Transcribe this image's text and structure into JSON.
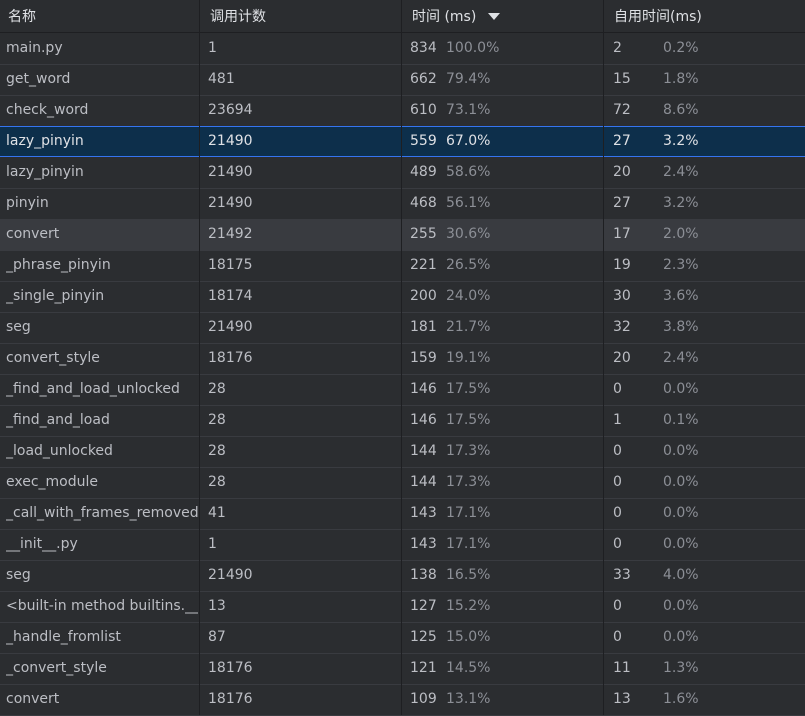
{
  "headers": {
    "name": "名称",
    "calls": "调用计数",
    "time": "时间 (ms)",
    "own_time": "自用时间(ms)"
  },
  "sort": {
    "column": "time",
    "direction": "descending",
    "icon": "sort-descending-icon"
  },
  "rows": [
    {
      "name": "main.py",
      "calls": "1",
      "time": "834",
      "time_pct": "100.0%",
      "own": "2",
      "own_pct": "0.2%"
    },
    {
      "name": "get_word",
      "calls": "481",
      "time": "662",
      "time_pct": "79.4%",
      "own": "15",
      "own_pct": "1.8%"
    },
    {
      "name": "check_word",
      "calls": "23694",
      "time": "610",
      "time_pct": "73.1%",
      "own": "72",
      "own_pct": "8.6%"
    },
    {
      "name": "lazy_pinyin",
      "calls": "21490",
      "time": "559",
      "time_pct": "67.0%",
      "own": "27",
      "own_pct": "3.2%"
    },
    {
      "name": "lazy_pinyin",
      "calls": "21490",
      "time": "489",
      "time_pct": "58.6%",
      "own": "20",
      "own_pct": "2.4%"
    },
    {
      "name": "pinyin",
      "calls": "21490",
      "time": "468",
      "time_pct": "56.1%",
      "own": "27",
      "own_pct": "3.2%"
    },
    {
      "name": "convert",
      "calls": "21492",
      "time": "255",
      "time_pct": "30.6%",
      "own": "17",
      "own_pct": "2.0%"
    },
    {
      "name": "_phrase_pinyin",
      "calls": "18175",
      "time": "221",
      "time_pct": "26.5%",
      "own": "19",
      "own_pct": "2.3%"
    },
    {
      "name": "_single_pinyin",
      "calls": "18174",
      "time": "200",
      "time_pct": "24.0%",
      "own": "30",
      "own_pct": "3.6%"
    },
    {
      "name": "seg",
      "calls": "21490",
      "time": "181",
      "time_pct": "21.7%",
      "own": "32",
      "own_pct": "3.8%"
    },
    {
      "name": "convert_style",
      "calls": "18176",
      "time": "159",
      "time_pct": "19.1%",
      "own": "20",
      "own_pct": "2.4%"
    },
    {
      "name": "_find_and_load_unlocked",
      "calls": "28",
      "time": "146",
      "time_pct": "17.5%",
      "own": "0",
      "own_pct": "0.0%"
    },
    {
      "name": "_find_and_load",
      "calls": "28",
      "time": "146",
      "time_pct": "17.5%",
      "own": "1",
      "own_pct": "0.1%"
    },
    {
      "name": "_load_unlocked",
      "calls": "28",
      "time": "144",
      "time_pct": "17.3%",
      "own": "0",
      "own_pct": "0.0%"
    },
    {
      "name": "exec_module",
      "calls": "28",
      "time": "144",
      "time_pct": "17.3%",
      "own": "0",
      "own_pct": "0.0%"
    },
    {
      "name": "_call_with_frames_removed",
      "calls": "41",
      "time": "143",
      "time_pct": "17.1%",
      "own": "0",
      "own_pct": "0.0%"
    },
    {
      "name": "__init__.py",
      "calls": "1",
      "time": "143",
      "time_pct": "17.1%",
      "own": "0",
      "own_pct": "0.0%"
    },
    {
      "name": "seg",
      "calls": "21490",
      "time": "138",
      "time_pct": "16.5%",
      "own": "33",
      "own_pct": "4.0%"
    },
    {
      "name": "<built-in method builtins.__import__>",
      "calls": "13",
      "time": "127",
      "time_pct": "15.2%",
      "own": "0",
      "own_pct": "0.0%"
    },
    {
      "name": "_handle_fromlist",
      "calls": "87",
      "time": "125",
      "time_pct": "15.0%",
      "own": "0",
      "own_pct": "0.0%"
    },
    {
      "name": "_convert_style",
      "calls": "18176",
      "time": "121",
      "time_pct": "14.5%",
      "own": "11",
      "own_pct": "1.3%"
    },
    {
      "name": "convert",
      "calls": "18176",
      "time": "109",
      "time_pct": "13.1%",
      "own": "13",
      "own_pct": "1.6%"
    }
  ],
  "selected_row": 3,
  "hovered_row": 6,
  "colors": {
    "background": "#2b2d30",
    "selection": "#0d2f4b",
    "selection_border": "#3574f0",
    "hover": "#393b40",
    "text": "#bcbec4",
    "muted": "#8c8f96"
  }
}
